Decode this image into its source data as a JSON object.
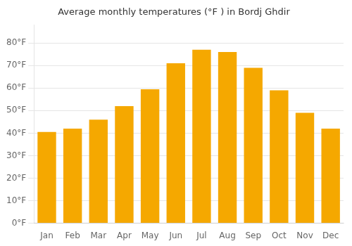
{
  "chart_data": {
    "type": "bar",
    "title": "Average monthly temperatures (°F ) in Bordj Ghdir",
    "categories": [
      "Jan",
      "Feb",
      "Mar",
      "Apr",
      "May",
      "Jun",
      "Jul",
      "Aug",
      "Sep",
      "Oct",
      "Nov",
      "Dec"
    ],
    "values": [
      40.5,
      42.0,
      46.0,
      52.0,
      59.5,
      71.0,
      77.0,
      76.0,
      69.0,
      59.0,
      49.0,
      42.0
    ],
    "color": "#F5A800",
    "ylim": [
      0,
      88
    ],
    "yticks": [
      {
        "value": 0,
        "label": "0°F"
      },
      {
        "value": 10,
        "label": "10°F"
      },
      {
        "value": 20,
        "label": "20°F"
      },
      {
        "value": 30,
        "label": "30°F"
      },
      {
        "value": 40,
        "label": "40°F"
      },
      {
        "value": 50,
        "label": "50°F"
      },
      {
        "value": 60,
        "label": "60°F"
      },
      {
        "value": 70,
        "label": "70°F"
      },
      {
        "value": 80,
        "label": "80°F"
      }
    ],
    "grid": true
  }
}
